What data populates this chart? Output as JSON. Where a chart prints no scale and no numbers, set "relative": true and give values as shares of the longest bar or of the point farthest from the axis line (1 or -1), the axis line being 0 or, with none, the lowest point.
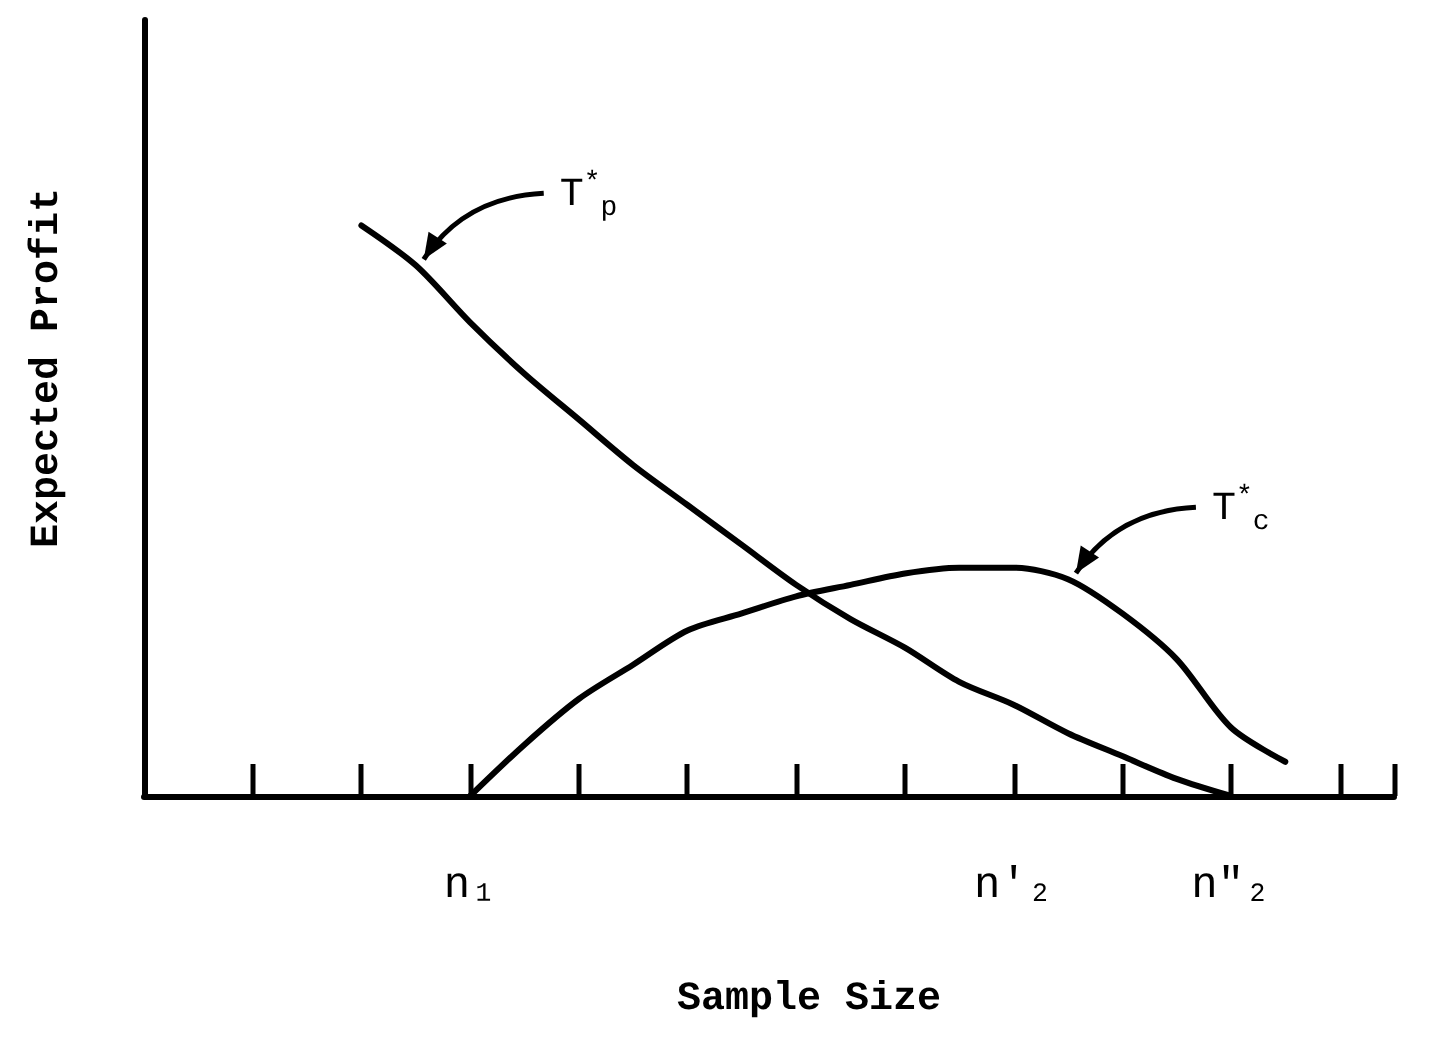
{
  "chart_data": {
    "type": "line",
    "relative": true,
    "xlabel": "Sample Size",
    "ylabel": "Expected Profit",
    "categories": [
      null,
      null,
      null,
      null,
      null,
      null,
      "n₁",
      null,
      null,
      null,
      null,
      null,
      null,
      null,
      null,
      null,
      "n′₂",
      null,
      null,
      null,
      "n″₂",
      null,
      null,
      null
    ],
    "series": [
      {
        "name": "T$^{*}$$_{p}$",
        "color": "#000000",
        "values": [
          null,
          null,
          null,
          null,
          1.0,
          0.93,
          0.83,
          0.74,
          0.66,
          0.58,
          0.51,
          0.44,
          0.37,
          0.31,
          0.26,
          0.2,
          0.16,
          0.11,
          0.07,
          0.03,
          0,
          null,
          null,
          null
        ]
      },
      {
        "name": "T$^{*}$$_{c}$",
        "color": "#000000",
        "values": [
          null,
          null,
          null,
          null,
          null,
          null,
          0,
          0.09,
          0.17,
          0.23,
          0.29,
          0.32,
          0.35,
          0.37,
          0.39,
          0.4,
          0.4,
          0.38,
          0.32,
          0.24,
          0.12,
          0.06,
          null,
          null
        ]
      }
    ],
    "grid": false,
    "marker": "none",
    "line_style": "solid"
  }
}
